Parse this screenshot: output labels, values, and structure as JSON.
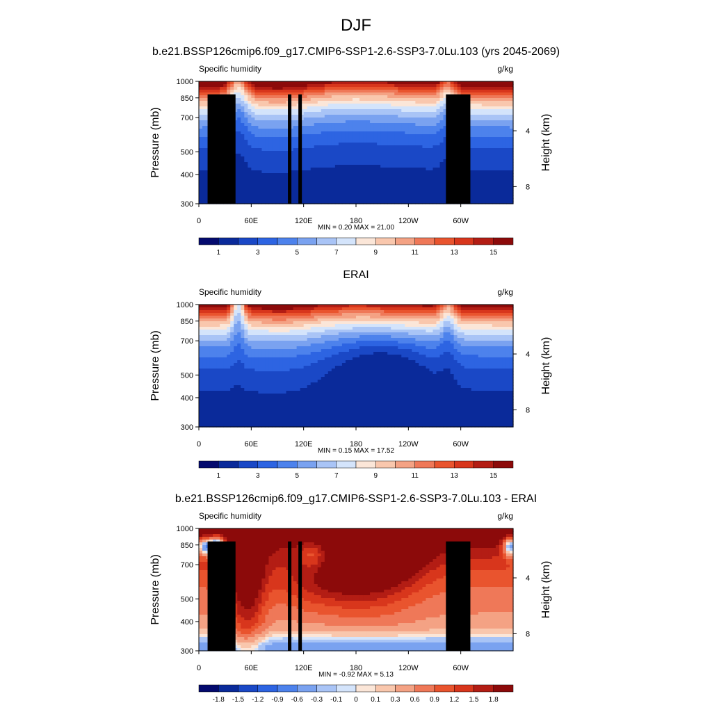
{
  "page": {
    "title": "DJF",
    "colors": {
      "abs_palette": [
        "#040a6e",
        "#0a2a9a",
        "#1a48c6",
        "#2d64e2",
        "#4d82ec",
        "#7aa2f0",
        "#a9c4f6",
        "#d4e4fb",
        "#fbe6d8",
        "#f9c7ad",
        "#f4a284",
        "#ef7858",
        "#e9542e",
        "#d8361c",
        "#b31d14",
        "#8c0a0a"
      ],
      "diff_palette": [
        "#040a6e",
        "#0a2a9a",
        "#1a48c6",
        "#2d64e2",
        "#4d82ec",
        "#7aa2f0",
        "#a9c4f6",
        "#d4e4fb",
        "#fbe6d8",
        "#f9c7ad",
        "#f4a284",
        "#ef7858",
        "#e9542e",
        "#d8361c",
        "#b31d14",
        "#8c0a0a"
      ],
      "terrain": "#000000"
    }
  },
  "chart_data": [
    {
      "type": "heatmap",
      "title": "b.e21.BSSP126cmip6.f09_g17.CMIP6-SSP1-2.6-SSP3-7.0Lu.103 (yrs 2045-2069)",
      "left_label": "Specific humidity",
      "right_label": "g/kg",
      "ylabel": "Pressure (mb)",
      "y2label": "Height (km)",
      "x_ticks": [
        "0",
        "60E",
        "120E",
        "180",
        "120W",
        "60W"
      ],
      "x_tick_values": [
        0,
        60,
        120,
        180,
        240,
        300
      ],
      "xlim": [
        0,
        360
      ],
      "y_ticks": [
        "300",
        "400",
        "500",
        "700",
        "850",
        "1000"
      ],
      "y_tick_values": [
        300,
        400,
        500,
        700,
        850,
        1000
      ],
      "ylim": [
        1000,
        300
      ],
      "y2_ticks": [
        "8",
        "4"
      ],
      "stats": "MIN =   0.20  MAX =  21.00",
      "colorbar_labels": [
        "1",
        "3",
        "5",
        "7",
        "9",
        "11",
        "13",
        "15"
      ],
      "colorbar_boundaries": [
        0,
        1,
        2,
        3,
        4,
        5,
        6,
        7,
        8,
        9,
        10,
        11,
        12,
        13,
        14,
        15
      ],
      "field": "abs",
      "terrain": true
    },
    {
      "type": "heatmap",
      "title": "ERAI",
      "left_label": "Specific humidity",
      "right_label": "g/kg",
      "ylabel": "Pressure (mb)",
      "y2label": "Height (km)",
      "x_ticks": [
        "0",
        "60E",
        "120E",
        "180",
        "120W",
        "60W"
      ],
      "x_tick_values": [
        0,
        60,
        120,
        180,
        240,
        300
      ],
      "xlim": [
        0,
        360
      ],
      "y_ticks": [
        "300",
        "400",
        "500",
        "700",
        "850",
        "1000"
      ],
      "y_tick_values": [
        300,
        400,
        500,
        700,
        850,
        1000
      ],
      "ylim": [
        1000,
        300
      ],
      "y2_ticks": [
        "8",
        "4"
      ],
      "stats": "MIN =   0.15  MAX =  17.52",
      "colorbar_labels": [
        "1",
        "3",
        "5",
        "7",
        "9",
        "11",
        "13",
        "15"
      ],
      "colorbar_boundaries": [
        0,
        1,
        2,
        3,
        4,
        5,
        6,
        7,
        8,
        9,
        10,
        11,
        12,
        13,
        14,
        15
      ],
      "field": "erai",
      "terrain": false
    },
    {
      "type": "heatmap",
      "title": "b.e21.BSSP126cmip6.f09_g17.CMIP6-SSP1-2.6-SSP3-7.0Lu.103 - ERAI",
      "left_label": "Specific humidity",
      "right_label": "g/kg",
      "ylabel": "Pressure (mb)",
      "y2label": "Height (km)",
      "x_ticks": [
        "0",
        "60E",
        "120E",
        "180",
        "120W",
        "60W"
      ],
      "x_tick_values": [
        0,
        60,
        120,
        180,
        240,
        300
      ],
      "xlim": [
        0,
        360
      ],
      "y_ticks": [
        "300",
        "400",
        "500",
        "700",
        "850",
        "1000"
      ],
      "y_tick_values": [
        300,
        400,
        500,
        700,
        850,
        1000
      ],
      "ylim": [
        1000,
        300
      ],
      "y2_ticks": [
        "8",
        "4"
      ],
      "stats": "MIN =  -0.92  MAX =   5.13",
      "colorbar_labels": [
        "-1.8",
        "-1.5",
        "-1.2",
        "-0.9",
        "-0.6",
        "-0.3",
        "-0.1",
        "0",
        "0.1",
        "0.3",
        "0.6",
        "0.9",
        "1.2",
        "1.5",
        "1.8"
      ],
      "colorbar_boundaries": [
        -1.8,
        -1.5,
        -1.2,
        -0.9,
        -0.6,
        -0.3,
        -0.1,
        0,
        0.1,
        0.3,
        0.6,
        0.9,
        1.2,
        1.5,
        1.8
      ],
      "field": "diff",
      "terrain": true
    }
  ]
}
